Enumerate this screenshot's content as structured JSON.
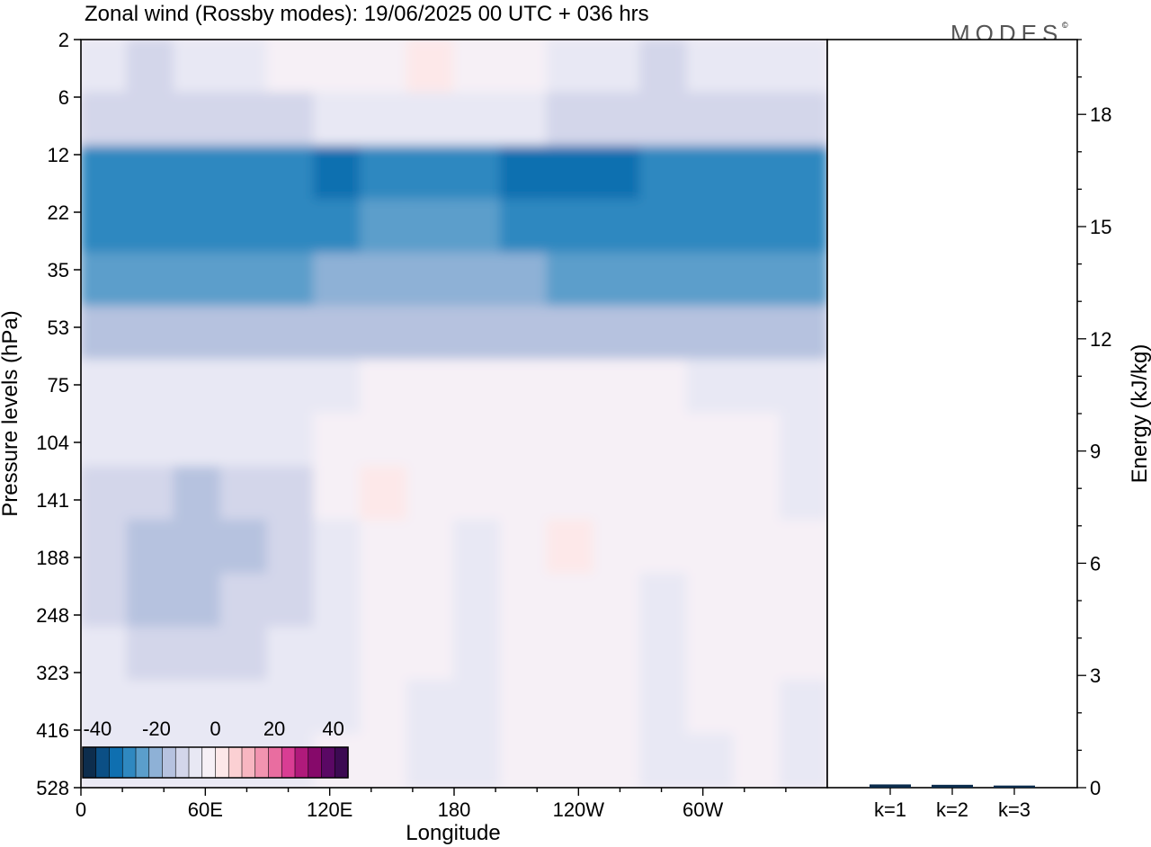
{
  "chart_data": [
    {
      "type": "heatmap",
      "title": "Zonal wind (Rossby modes):  19/06/2025  00 UTC  + 036 hrs",
      "brand": "MODES",
      "brand_mark": "©",
      "xlabel": "Longitude",
      "ylabel": "Pressure levels (hPa)",
      "x_ticks": [
        "0",
        "60E",
        "120E",
        "180",
        "120W",
        "60W"
      ],
      "x_tick_degrees": [
        0,
        60,
        120,
        180,
        240,
        300
      ],
      "x_range_degrees": [
        0,
        360
      ],
      "y_ticks": [
        "2",
        "6",
        "12",
        "22",
        "35",
        "53",
        "75",
        "104",
        "141",
        "188",
        "248",
        "323",
        "416",
        "528"
      ],
      "colorbar": {
        "labels": [
          "-40",
          "-20",
          "0",
          "20",
          "40"
        ],
        "label_values": [
          -40,
          -20,
          0,
          20,
          40
        ],
        "range": [
          -45,
          45
        ],
        "step": 5,
        "colors": [
          "#0d2d4d",
          "#0b4f85",
          "#0f6fb0",
          "#2f88c0",
          "#5b9ecb",
          "#8eb1d6",
          "#b6c2df",
          "#d3d6ea",
          "#e8e8f4",
          "#f6f0f6",
          "#fde8e9",
          "#fbd0d3",
          "#f8b6c1",
          "#f294b0",
          "#e96da0",
          "#d93d93",
          "#b01a7b",
          "#86096a",
          "#5a0864",
          "#3c0a52"
        ]
      },
      "field_rows": [
        [
          -4,
          -6,
          -4,
          -2,
          0,
          2,
          4,
          5,
          4,
          2,
          -2,
          -4,
          -6,
          -4,
          -2,
          -3
        ],
        [
          -8,
          -9,
          -9,
          -8,
          -6,
          -5,
          -4,
          -4,
          -4,
          -5,
          -6,
          -8,
          -8,
          -7,
          -8,
          -9
        ],
        [
          -26,
          -28,
          -30,
          -28,
          -30,
          -32,
          -28,
          -26,
          -26,
          -32,
          -34,
          -34,
          -30,
          -28,
          -27,
          -28
        ],
        [
          -27,
          -28,
          -28,
          -28,
          -27,
          -26,
          -25,
          -25,
          -25,
          -26,
          -28,
          -28,
          -28,
          -28,
          -29,
          -29
        ],
        [
          -22,
          -22,
          -22,
          -22,
          -21,
          -20,
          -20,
          -20,
          -20,
          -20,
          -21,
          -21,
          -21,
          -21,
          -22,
          -22
        ],
        [
          -14,
          -14,
          -14,
          -14,
          -13,
          -13,
          -13,
          -13,
          -13,
          -13,
          -13,
          -13,
          -13,
          -13,
          -13,
          -14
        ],
        [
          -3,
          -3,
          -3,
          -3,
          -2,
          -1,
          0,
          0,
          0,
          0,
          0,
          0,
          0,
          -1,
          -1,
          -2
        ],
        [
          -2,
          -3,
          -4,
          -4,
          -2,
          1,
          3,
          4,
          3,
          2,
          3,
          4,
          3,
          2,
          1,
          -1
        ],
        [
          -6,
          -10,
          -11,
          -9,
          -6,
          1,
          8,
          4,
          1,
          2,
          3,
          2,
          1,
          2,
          1,
          -5
        ],
        [
          -8,
          -13,
          -14,
          -11,
          -7,
          -2,
          3,
          1,
          -1,
          3,
          5,
          2,
          1,
          4,
          2,
          0
        ],
        [
          -7,
          -12,
          -13,
          -10,
          -6,
          -2,
          2,
          1,
          -2,
          4,
          4,
          2,
          -1,
          4,
          1,
          0
        ],
        [
          -5,
          -8,
          -9,
          -7,
          -5,
          -3,
          1,
          0,
          -3,
          3,
          3,
          1,
          -2,
          3,
          0,
          0
        ],
        [
          -3,
          -5,
          -5,
          -4,
          -3,
          -2,
          0,
          -1,
          -3,
          1,
          1,
          0,
          -3,
          1,
          0,
          -1
        ],
        [
          -2,
          -3,
          -3,
          -2,
          -1,
          0,
          0,
          -2,
          -3,
          0,
          0,
          0,
          -3,
          -1,
          0,
          -2
        ]
      ],
      "energy_panel": {
        "ylabel": "Energy (kJ/kg)",
        "y_range": [
          0,
          20
        ],
        "y_ticks": [
          "0",
          "3",
          "6",
          "9",
          "12",
          "15",
          "18"
        ],
        "y_tick_values": [
          0,
          3,
          6,
          9,
          12,
          15,
          18
        ],
        "categories": [
          "k=1",
          "k=2",
          "k=3"
        ],
        "values": [
          0.05,
          0.04,
          0.02
        ]
      }
    }
  ]
}
